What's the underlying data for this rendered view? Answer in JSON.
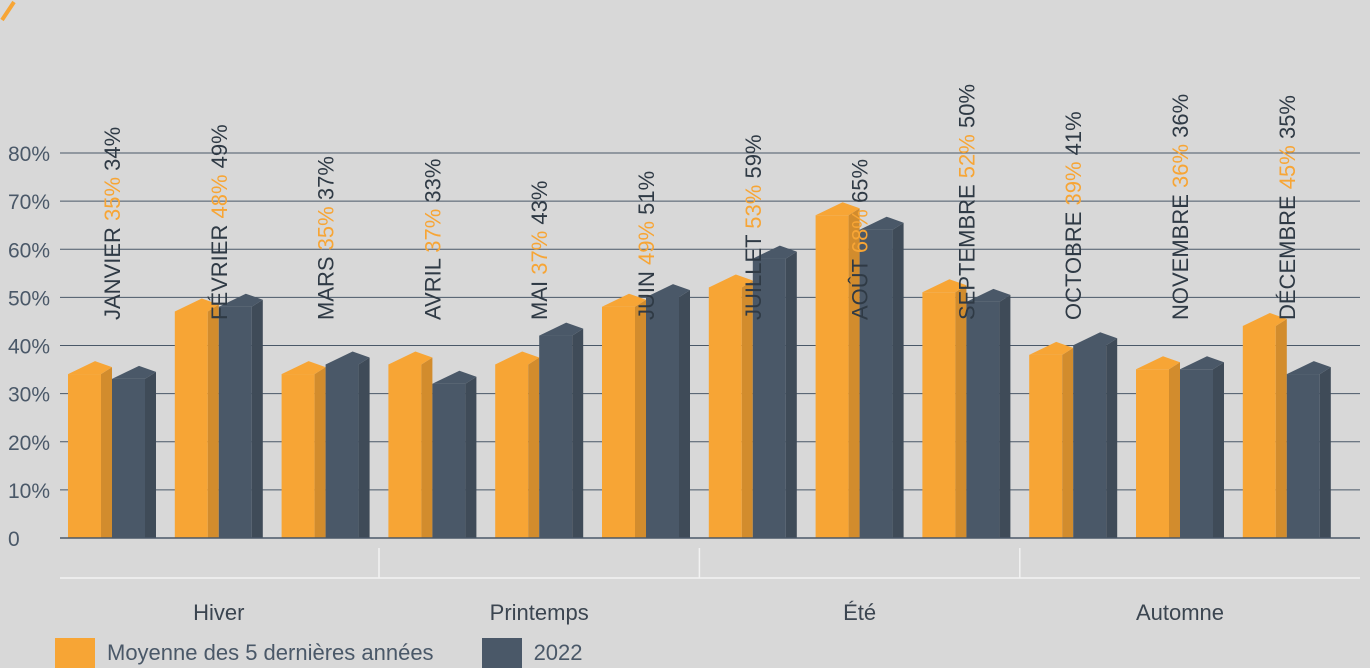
{
  "chart_data": {
    "type": "bar",
    "categories": [
      "JANVIER",
      "FÉVRIER",
      "MARS",
      "AVRIL",
      "MAI",
      "JUIN",
      "JUILLET",
      "AOÛT",
      "SEPTEMBRE",
      "OCTOBRE",
      "NOVEMBRE",
      "DÉCEMBRE"
    ],
    "series": [
      {
        "name": "Moyenne des 5 dernières années",
        "color": "#f7a535",
        "values": [
          35,
          48,
          35,
          37,
          37,
          49,
          53,
          68,
          52,
          39,
          36,
          45
        ],
        "labels": [
          "35%",
          "48%",
          "35%",
          "37%",
          "37%",
          "49%",
          "53%",
          "68%",
          "52%",
          "39%",
          "36%",
          "45%"
        ]
      },
      {
        "name": "2022",
        "color": "#4a5868",
        "values": [
          34,
          49,
          37,
          33,
          43,
          51,
          59,
          65,
          50,
          41,
          36,
          35
        ],
        "labels": [
          "34%",
          "49%",
          "37%",
          "33%",
          "43%",
          "51%",
          "59%",
          "65%",
          "50%",
          "41%",
          "36%",
          "35%"
        ]
      }
    ],
    "yticks": [
      "0",
      "10%",
      "20%",
      "30%",
      "40%",
      "50%",
      "60%",
      "70%",
      "80%"
    ],
    "ylim": [
      0,
      80
    ],
    "groups": [
      {
        "label": "Hiver",
        "months": [
          0,
          1,
          2
        ]
      },
      {
        "label": "Printemps",
        "months": [
          3,
          4,
          5
        ]
      },
      {
        "label": "Été",
        "months": [
          6,
          7,
          8
        ]
      },
      {
        "label": "Automne",
        "months": [
          9,
          10,
          11
        ]
      }
    ],
    "grid": true,
    "legend_position": "bottom-left",
    "title": "",
    "xlabel": "",
    "ylabel": ""
  },
  "legend": {
    "series1_label": "Moyenne des 5 dernières années",
    "series2_label": "2022"
  },
  "colors": {
    "background": "#d8d8d8",
    "gridline": "#4a5868",
    "label_dark": "#2f3a45",
    "accent_orange": "#f7a535"
  }
}
